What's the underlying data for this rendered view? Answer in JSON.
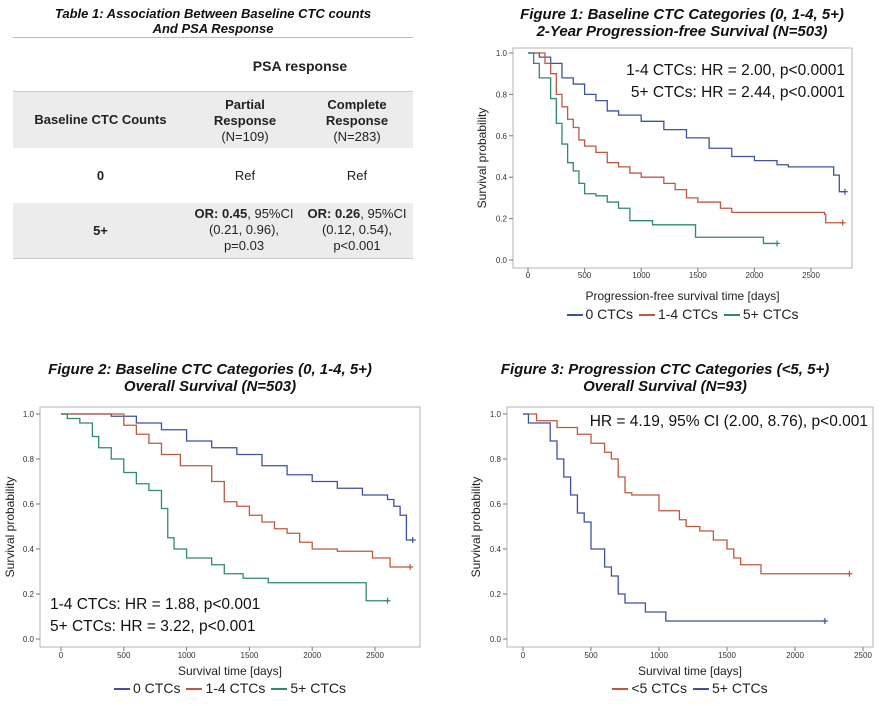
{
  "table": {
    "title_line1": "Table 1: Association Between Baseline CTC counts",
    "title_line2": "And PSA Response",
    "group_header": "PSA response",
    "col1_header": "Baseline CTC Counts",
    "col2_header": [
      "Partial",
      "Response",
      "(N=109)"
    ],
    "col3_header": [
      "Complete",
      "Response",
      "(N=283)"
    ],
    "rows": [
      {
        "label": "0",
        "partial": "Ref",
        "complete": "Ref"
      },
      {
        "label": "5+",
        "partial": {
          "or_label": "OR: 0.45",
          "ci": ", 95%CI",
          "ci2": "(0.21, 0.96),",
          "p": "p=0.03"
        },
        "complete": {
          "or_label": "OR: 0.26",
          "ci": ", 95%CI",
          "ci2": "(0.12, 0.54),",
          "p": "p<0.001"
        }
      }
    ]
  },
  "colors": {
    "blue": "#3f51a3",
    "red": "#c0583f",
    "green": "#2e8a6c",
    "band": "#ececec"
  },
  "chart_data": [
    {
      "type": "line",
      "subtype": "kaplan-meier step",
      "title": [
        "Figure 1: Baseline CTC Categories (0, 1-4, 5+)",
        "2-Year Progression-free Survival (N=503)"
      ],
      "xlabel": "Progression-free survival time [days]",
      "ylabel": "Survival probability",
      "xlim": [
        0,
        2800
      ],
      "ylim": [
        0,
        1
      ],
      "xticks": [
        0,
        500,
        1000,
        1500,
        2000,
        2500
      ],
      "yticks": [
        "0.0",
        "0.2",
        "0.4",
        "0.6",
        "0.8",
        "1.0"
      ],
      "annotations": [
        "1-4 CTCs: HR = 2.00, p<0.0001",
        "5+ CTCs: HR = 2.44, p<0.0001"
      ],
      "legend": "bottom",
      "series": [
        {
          "name": "0 CTCs",
          "color": "#3f51a3",
          "points": [
            [
              0,
              1
            ],
            [
              100,
              0.98
            ],
            [
              200,
              0.95
            ],
            [
              300,
              0.88
            ],
            [
              400,
              0.85
            ],
            [
              500,
              0.8
            ],
            [
              600,
              0.77
            ],
            [
              700,
              0.72
            ],
            [
              800,
              0.7
            ],
            [
              1000,
              0.67
            ],
            [
              1200,
              0.63
            ],
            [
              1400,
              0.59
            ],
            [
              1600,
              0.54
            ],
            [
              1800,
              0.5
            ],
            [
              2000,
              0.48
            ],
            [
              2200,
              0.46
            ],
            [
              2300,
              0.45
            ],
            [
              2650,
              0.45
            ],
            [
              2700,
              0.41
            ],
            [
              2750,
              0.33
            ],
            [
              2800,
              0.33
            ]
          ]
        },
        {
          "name": "1-4 CTCs",
          "color": "#c0583f",
          "points": [
            [
              0,
              1
            ],
            [
              100,
              1
            ],
            [
              150,
              0.95
            ],
            [
              200,
              0.9
            ],
            [
              250,
              0.8
            ],
            [
              300,
              0.74
            ],
            [
              350,
              0.68
            ],
            [
              400,
              0.64
            ],
            [
              450,
              0.58
            ],
            [
              500,
              0.55
            ],
            [
              600,
              0.52
            ],
            [
              700,
              0.47
            ],
            [
              800,
              0.45
            ],
            [
              900,
              0.42
            ],
            [
              1000,
              0.4
            ],
            [
              1200,
              0.37
            ],
            [
              1300,
              0.34
            ],
            [
              1400,
              0.3
            ],
            [
              1500,
              0.28
            ],
            [
              1700,
              0.25
            ],
            [
              1800,
              0.23
            ],
            [
              2620,
              0.22
            ],
            [
              2630,
              0.18
            ],
            [
              2780,
              0.18
            ]
          ]
        },
        {
          "name": "5+ CTCs",
          "color": "#2e8a6c",
          "points": [
            [
              0,
              1
            ],
            [
              50,
              0.95
            ],
            [
              100,
              0.88
            ],
            [
              150,
              0.88
            ],
            [
              200,
              0.78
            ],
            [
              250,
              0.66
            ],
            [
              300,
              0.56
            ],
            [
              350,
              0.47
            ],
            [
              400,
              0.43
            ],
            [
              450,
              0.37
            ],
            [
              500,
              0.32
            ],
            [
              600,
              0.31
            ],
            [
              700,
              0.28
            ],
            [
              800,
              0.25
            ],
            [
              900,
              0.19
            ],
            [
              1100,
              0.17
            ],
            [
              1430,
              0.17
            ],
            [
              1480,
              0.11
            ],
            [
              2070,
              0.11
            ],
            [
              2080,
              0.08
            ],
            [
              2200,
              0.08
            ]
          ]
        }
      ]
    },
    {
      "type": "line",
      "subtype": "kaplan-meier step",
      "title": [
        "Figure 2: Baseline CTC Categories (0, 1-4, 5+)",
        "Overall Survival (N=503)"
      ],
      "xlabel": "Survival time [days]",
      "ylabel": "Survival probability",
      "xlim": [
        0,
        2800
      ],
      "ylim": [
        0,
        1
      ],
      "xticks": [
        0,
        500,
        1000,
        1500,
        2000,
        2500
      ],
      "yticks": [
        "0.0",
        "0.2",
        "0.4",
        "0.6",
        "0.8",
        "1.0"
      ],
      "annotations": [
        "1-4 CTCs: HR = 1.88, p<0.001",
        "5+ CTCs: HR = 3.22, p<0.001"
      ],
      "legend": "bottom",
      "series": [
        {
          "name": "0 CTCs",
          "color": "#3f51a3",
          "points": [
            [
              0,
              1
            ],
            [
              400,
              0.99
            ],
            [
              600,
              0.96
            ],
            [
              800,
              0.93
            ],
            [
              1000,
              0.88
            ],
            [
              1200,
              0.85
            ],
            [
              1400,
              0.82
            ],
            [
              1600,
              0.77
            ],
            [
              1800,
              0.73
            ],
            [
              2000,
              0.7
            ],
            [
              2200,
              0.67
            ],
            [
              2400,
              0.64
            ],
            [
              2600,
              0.62
            ],
            [
              2650,
              0.59
            ],
            [
              2700,
              0.55
            ],
            [
              2750,
              0.44
            ],
            [
              2800,
              0.44
            ]
          ]
        },
        {
          "name": "1-4 CTCs",
          "color": "#c0583f",
          "points": [
            [
              0,
              1
            ],
            [
              400,
              1
            ],
            [
              500,
              0.95
            ],
            [
              600,
              0.91
            ],
            [
              700,
              0.87
            ],
            [
              800,
              0.82
            ],
            [
              900,
              0.82
            ],
            [
              950,
              0.77
            ],
            [
              1100,
              0.77
            ],
            [
              1200,
              0.7
            ],
            [
              1300,
              0.61
            ],
            [
              1400,
              0.59
            ],
            [
              1500,
              0.55
            ],
            [
              1600,
              0.52
            ],
            [
              1700,
              0.49
            ],
            [
              1800,
              0.47
            ],
            [
              1900,
              0.43
            ],
            [
              2000,
              0.4
            ],
            [
              2200,
              0.39
            ],
            [
              2450,
              0.39
            ],
            [
              2480,
              0.36
            ],
            [
              2600,
              0.36
            ],
            [
              2620,
              0.32
            ],
            [
              2780,
              0.32
            ]
          ]
        },
        {
          "name": "5+ CTCs",
          "color": "#2e8a6c",
          "points": [
            [
              0,
              1
            ],
            [
              50,
              0.98
            ],
            [
              150,
              0.96
            ],
            [
              250,
              0.9
            ],
            [
              300,
              0.85
            ],
            [
              400,
              0.8
            ],
            [
              500,
              0.74
            ],
            [
              600,
              0.69
            ],
            [
              700,
              0.66
            ],
            [
              800,
              0.58
            ],
            [
              850,
              0.45
            ],
            [
              900,
              0.4
            ],
            [
              1000,
              0.36
            ],
            [
              1200,
              0.33
            ],
            [
              1300,
              0.29
            ],
            [
              1450,
              0.27
            ],
            [
              1650,
              0.25
            ],
            [
              2420,
              0.25
            ],
            [
              2430,
              0.17
            ],
            [
              2600,
              0.17
            ]
          ]
        }
      ]
    },
    {
      "type": "line",
      "subtype": "kaplan-meier step",
      "title": [
        "Figure 3: Progression CTC Categories (<5, 5+)",
        "Overall Survival (N=93)"
      ],
      "xlabel": "Survival time [days]",
      "ylabel": "Survival probability",
      "xlim": [
        0,
        2500
      ],
      "ylim": [
        0,
        1
      ],
      "xticks": [
        0,
        500,
        1000,
        1500,
        2000,
        2500
      ],
      "yticks": [
        "0.0",
        "0.2",
        "0.4",
        "0.6",
        "0.8",
        "1.0"
      ],
      "annotations": [
        "HR = 4.19, 95% CI (2.00, 8.76), p<0.001"
      ],
      "legend": "bottom",
      "series": [
        {
          "name": "<5 CTCs",
          "color": "#c0583f",
          "points": [
            [
              0,
              1
            ],
            [
              100,
              0.97
            ],
            [
              250,
              0.94
            ],
            [
              400,
              0.91
            ],
            [
              500,
              0.87
            ],
            [
              600,
              0.83
            ],
            [
              650,
              0.8
            ],
            [
              700,
              0.72
            ],
            [
              750,
              0.65
            ],
            [
              800,
              0.64
            ],
            [
              1000,
              0.57
            ],
            [
              1100,
              0.57
            ],
            [
              1150,
              0.53
            ],
            [
              1200,
              0.5
            ],
            [
              1300,
              0.48
            ],
            [
              1400,
              0.44
            ],
            [
              1500,
              0.4
            ],
            [
              1550,
              0.36
            ],
            [
              1600,
              0.33
            ],
            [
              1700,
              0.33
            ],
            [
              1750,
              0.29
            ],
            [
              2400,
              0.29
            ]
          ]
        },
        {
          "name": "5+ CTCs",
          "color": "#3f51a3",
          "points": [
            [
              0,
              1
            ],
            [
              40,
              0.96
            ],
            [
              140,
              0.96
            ],
            [
              200,
              0.88
            ],
            [
              250,
              0.8
            ],
            [
              300,
              0.72
            ],
            [
              350,
              0.64
            ],
            [
              400,
              0.56
            ],
            [
              450,
              0.52
            ],
            [
              500,
              0.4
            ],
            [
              600,
              0.32
            ],
            [
              650,
              0.28
            ],
            [
              700,
              0.2
            ],
            [
              750,
              0.16
            ],
            [
              850,
              0.16
            ],
            [
              900,
              0.12
            ],
            [
              1030,
              0.12
            ],
            [
              1050,
              0.08
            ],
            [
              2220,
              0.08
            ]
          ]
        }
      ]
    }
  ]
}
